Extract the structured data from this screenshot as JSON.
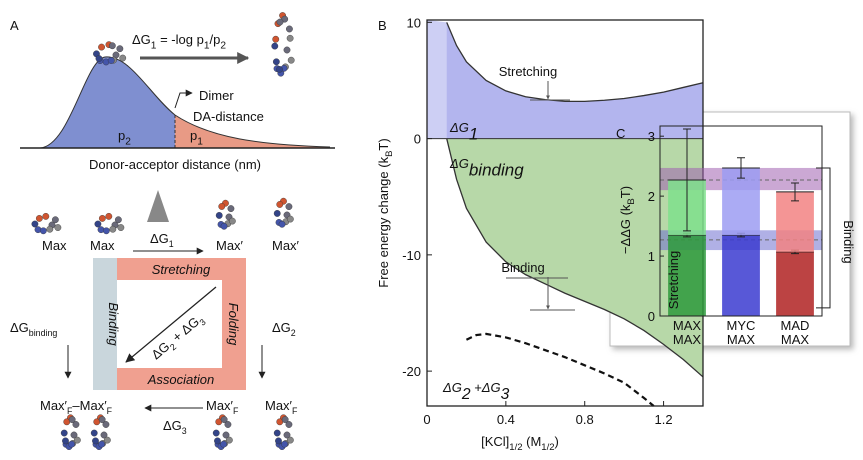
{
  "panel_a": {
    "label": "A",
    "equation": [
      "ΔG",
      "1",
      " = -log p",
      "1",
      "/p",
      "2"
    ],
    "p2": [
      "p",
      "2"
    ],
    "p1": [
      "p",
      "1"
    ],
    "dimer_label": "Dimer",
    "da_distance_label": "DA-distance",
    "x_axis_label": "Donor-acceptor distance (nm)",
    "top_row": [
      "Max",
      "Max",
      "Max′",
      "Max′"
    ],
    "top_arrow": [
      "ΔG",
      "1"
    ],
    "cycle": {
      "top": "Stretching",
      "left": "Binding",
      "right": "Folding",
      "bottom": "Association",
      "diagonal": [
        "ΔG",
        "2",
        " + ΔG",
        "3"
      ]
    },
    "left_arrow": [
      "ΔG",
      "binding"
    ],
    "right_arrow": [
      "ΔG",
      "2"
    ],
    "bottom_arrow": [
      "ΔG",
      "3"
    ],
    "bottom_row": [
      [
        "Max′",
        "F",
        "–Max′",
        "F"
      ],
      [
        "Max′",
        "F"
      ],
      [
        "Max′",
        "F"
      ]
    ]
  },
  "chart_data": [
    {
      "type": "line",
      "label": "B",
      "x_label": [
        "[KCl]",
        "1/2",
        " (M",
        "1/2",
        ")"
      ],
      "y_label": [
        "Free energy change (k",
        "B",
        "T)"
      ],
      "xlim": [
        0,
        1.4
      ],
      "xticks": [
        0,
        0.4,
        0.8,
        1.2
      ],
      "ylim": [
        -23,
        10.2
      ],
      "yticks": [
        -20,
        -10,
        0,
        10
      ],
      "series": [
        {
          "name": "Stretching",
          "color": "#333333",
          "style": "solid",
          "x": [
            0.1,
            0.15,
            0.2,
            0.3,
            0.4,
            0.5,
            0.6,
            0.7,
            0.8,
            0.9,
            1.0,
            1.1,
            1.2,
            1.3,
            1.4
          ],
          "values": [
            10,
            8.0,
            6.6,
            5.0,
            4.1,
            3.6,
            3.35,
            3.2,
            3.2,
            3.3,
            3.45,
            3.7,
            4.0,
            4.4,
            4.8
          ]
        },
        {
          "name": "Binding",
          "color": "#333333",
          "style": "solid",
          "x": [
            0.1,
            0.15,
            0.2,
            0.3,
            0.4,
            0.5,
            0.6,
            0.7,
            0.8,
            0.9,
            1.0,
            1.1,
            1.2,
            1.3,
            1.4
          ],
          "values": [
            0,
            -3.5,
            -6,
            -8.9,
            -10.6,
            -11.7,
            -12.5,
            -13.3,
            -14.0,
            -14.7,
            -15.5,
            -16.5,
            -17.7,
            -19.0,
            -20.5
          ]
        },
        {
          "color": "#111111",
          "style": "dashed",
          "x": [
            0.2,
            0.25,
            0.3,
            0.4,
            0.5,
            0.6,
            0.7,
            0.8,
            0.9,
            1.0,
            1.1,
            1.15
          ],
          "values": [
            -17.3,
            -16.9,
            -16.8,
            -17.1,
            -17.6,
            -18.2,
            -18.8,
            -19.5,
            -20.2,
            -21.0,
            -22.3,
            -23
          ]
        }
      ],
      "annotations": {
        "g1": [
          "ΔG",
          "1"
        ],
        "gbinding": [
          "ΔG",
          "binding"
        ],
        "g23": [
          "ΔG",
          "2",
          " +ΔG",
          "3"
        ]
      }
    },
    {
      "type": "bar",
      "label": "C",
      "y_label": [
        "−ΔΔG (k",
        "B",
        "T)"
      ],
      "categories": [
        "MAX MAX",
        "MYC MAX",
        "MAD MAX"
      ],
      "ylim": [
        0,
        3.17
      ],
      "yticks": [
        0,
        1,
        2,
        3
      ],
      "series": [
        {
          "name": "Stretching",
          "colors": [
            "#2e9a3c",
            "#3b3bd0",
            "#b02222"
          ],
          "values": [
            1.35,
            1.35,
            1.07
          ],
          "errors": [
            0.03,
            0.03,
            0.03
          ]
        },
        {
          "name": "Binding",
          "colors": [
            "#7fe08c",
            "#9c9cf2",
            "#f28282"
          ],
          "values": [
            0.92,
            1.12,
            1.0
          ],
          "errors": [
            0.85,
            0.17,
            0.15
          ]
        }
      ],
      "bands": [
        {
          "low": 2.1,
          "center": 2.27,
          "high": 2.47,
          "color": "#a060b0"
        },
        {
          "low": 1.1,
          "center": 1.27,
          "high": 1.43,
          "color": "#7070d0"
        }
      ]
    }
  ]
}
